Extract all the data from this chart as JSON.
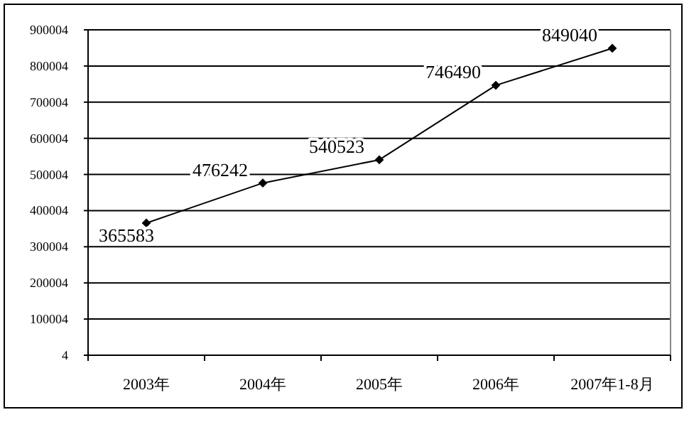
{
  "chart_data": {
    "type": "line",
    "categories": [
      "2003年",
      "2004年",
      "2005年",
      "2006年",
      "2007年1-8月"
    ],
    "series": [
      {
        "color": "#000000",
        "values": [
          365583,
          476242,
          540523,
          746490,
          849040
        ]
      }
    ],
    "ylim": [
      4,
      900004
    ],
    "yticks": [
      4,
      100004,
      200004,
      300004,
      400004,
      500004,
      600004,
      700004,
      800004,
      900004
    ],
    "grid": "y",
    "marker": "diamond",
    "line_style": "solid",
    "data_labels": true
  }
}
